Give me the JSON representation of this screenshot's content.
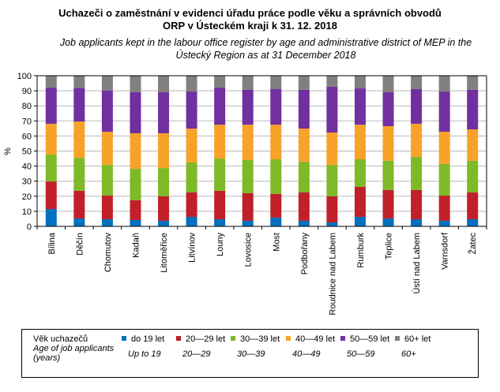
{
  "title": {
    "cz_line1": "Uchazeči o zaměstnání v evidenci úřadu práce podle věku a správních  obvodů",
    "cz_line2": "ORP v Ústeckém kraji k 31. 12. 2018",
    "en_line1": "Job applicants kept in the labour office register by age and administrative district of MEP in the",
    "en_line2": "Ústecký Region as at 31 December 2018"
  },
  "legend": {
    "title_cz": "Věk uchazečů",
    "title_en_line1": "Age of job applicants",
    "title_en_line2": "(years)"
  },
  "chart_data": {
    "type": "bar",
    "stacked": true,
    "percent": true,
    "title": "Uchazeči o zaměstnání v evidenci úřadu práce podle věku a správních obvodů ORP v Ústeckém kraji k 31. 12. 2018",
    "xlabel": "",
    "ylabel": "%",
    "ylim": [
      0,
      100
    ],
    "yticks": [
      0,
      10,
      20,
      30,
      40,
      50,
      60,
      70,
      80,
      90,
      100
    ],
    "grid": true,
    "legend_position": "bottom",
    "categories": [
      "Bílina",
      "Děčín",
      "Chomutov",
      "Kadaň",
      "Litoměřice",
      "Litvínov",
      "Louny",
      "Lovosice",
      "Most",
      "Podbořany",
      "Roudnice nad Labem",
      "Rumburk",
      "Teplice",
      "Ústí nad Labem",
      "Varnsdorf",
      "Žatec"
    ],
    "series": [
      {
        "name": "do 19 let",
        "name_en": "Up to 19",
        "color": "#0070C0",
        "values": [
          11.5,
          5.2,
          4.7,
          4.2,
          3.7,
          6.3,
          4.7,
          3.7,
          5.8,
          3.7,
          2.6,
          6.3,
          5.2,
          4.7,
          3.7,
          4.7
        ]
      },
      {
        "name": "20—29 let",
        "name_en": "20—29",
        "color": "#C0202A",
        "values": [
          18.3,
          18.4,
          15.7,
          13.1,
          16.2,
          16.2,
          18.9,
          18.3,
          15.7,
          18.8,
          17.3,
          19.9,
          18.9,
          19.4,
          16.7,
          17.8
        ]
      },
      {
        "name": "30—39 let",
        "name_en": "30—39",
        "color": "#7FB928",
        "values": [
          17.8,
          21.9,
          20.4,
          20.9,
          18.8,
          19.9,
          21.4,
          22.0,
          23.0,
          20.4,
          20.9,
          18.3,
          19.4,
          22.0,
          21.0,
          21.0
        ]
      },
      {
        "name": "40—49 let",
        "name_en": "40—49",
        "color": "#F8A22A",
        "values": [
          20.5,
          24.1,
          22.0,
          23.6,
          23.1,
          22.5,
          22.5,
          23.5,
          23.0,
          22.0,
          21.5,
          23.0,
          23.0,
          22.0,
          21.4,
          20.9
        ]
      },
      {
        "name": "50—59 let",
        "name_en": "50—59",
        "color": "#7030A0",
        "values": [
          24.0,
          22.4,
          27.3,
          27.2,
          27.2,
          24.6,
          24.6,
          23.1,
          23.6,
          25.7,
          30.4,
          24.1,
          22.5,
          23.0,
          26.7,
          26.2
        ]
      },
      {
        "name": "60+ let",
        "name_en": "60+",
        "color": "#808080",
        "values": [
          7.9,
          8.0,
          9.9,
          11.0,
          11.0,
          10.5,
          7.9,
          9.4,
          8.9,
          9.4,
          7.3,
          8.4,
          11.0,
          8.9,
          10.5,
          9.4
        ]
      }
    ]
  }
}
